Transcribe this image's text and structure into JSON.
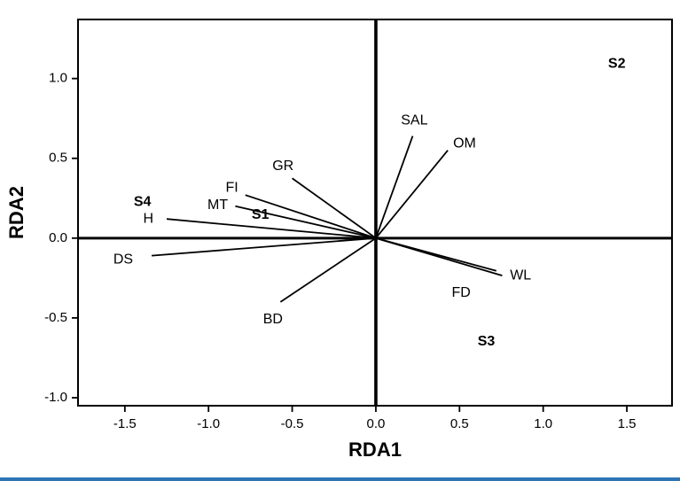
{
  "figure": {
    "kind": "RDA ordination biplot"
  },
  "colors": {
    "axis": "#000000",
    "background": "#ffffff",
    "bottom_rule": "#2e75b6"
  },
  "chart_data": {
    "type": "scatter",
    "subtype": "rda_biplot_vectors",
    "title": "",
    "xlabel": "RDA1",
    "ylabel": "RDA2",
    "xlim": [
      -1.78,
      1.77
    ],
    "ylim": [
      -1.05,
      1.37
    ],
    "grid": false,
    "legend": "none",
    "xticks": [
      -1.5,
      -1.0,
      -0.5,
      0.0,
      0.5,
      1.0,
      1.5
    ],
    "xtick_labels": [
      "-1.5",
      "-1.0",
      "-0.5",
      "0.0",
      "0.5",
      "1.0",
      "1.5"
    ],
    "yticks": [
      -1.0,
      -0.5,
      0.0,
      0.5,
      1.0
    ],
    "ytick_labels": [
      "-1.0",
      "-0.5",
      "0.0",
      "0.5",
      "1.0"
    ],
    "vectors": [
      {
        "name": "SAL",
        "end": [
          0.22,
          0.64
        ],
        "label_pos": [
          0.23,
          0.735
        ]
      },
      {
        "name": "OM",
        "end": [
          0.43,
          0.55
        ],
        "label_pos": [
          0.53,
          0.59
        ]
      },
      {
        "name": "GR",
        "end": [
          -0.5,
          0.375
        ],
        "label_pos": [
          -0.555,
          0.45
        ]
      },
      {
        "name": "FI",
        "end": [
          -0.78,
          0.27
        ],
        "label_pos": [
          -0.86,
          0.315
        ]
      },
      {
        "name": "MT",
        "end": [
          -0.84,
          0.2
        ],
        "label_pos": [
          -0.945,
          0.205
        ]
      },
      {
        "name": "H",
        "end": [
          -1.25,
          0.12
        ],
        "label_pos": [
          -1.36,
          0.12
        ]
      },
      {
        "name": "DS",
        "end": [
          -1.34,
          -0.11
        ],
        "label_pos": [
          -1.51,
          -0.135
        ]
      },
      {
        "name": "BD",
        "end": [
          -0.57,
          -0.4
        ],
        "label_pos": [
          -0.615,
          -0.51
        ]
      },
      {
        "name": "FD",
        "end": [
          0.72,
          -0.205
        ],
        "label_pos": [
          0.51,
          -0.345
        ]
      },
      {
        "name": "WL",
        "end": [
          0.755,
          -0.235
        ],
        "label_pos": [
          0.865,
          -0.235
        ]
      }
    ],
    "sites": [
      {
        "name": "S2",
        "pos": [
          1.44,
          1.09
        ]
      },
      {
        "name": "S4",
        "pos": [
          -1.395,
          0.225
        ]
      },
      {
        "name": "S1",
        "pos": [
          -0.69,
          0.145
        ]
      },
      {
        "name": "S3",
        "pos": [
          0.66,
          -0.65
        ]
      }
    ]
  }
}
